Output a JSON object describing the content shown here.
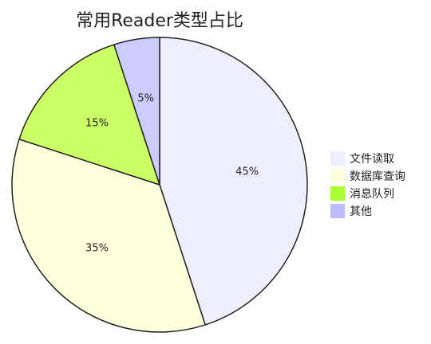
{
  "chart_data": {
    "type": "pie",
    "title": "常用Reader类型占比",
    "categories": [
      "文件读取",
      "数据库查询",
      "消息队列",
      "其他"
    ],
    "values": [
      45,
      35,
      15,
      5
    ],
    "labels": [
      "45%",
      "35%",
      "15%",
      "5%"
    ],
    "colors": [
      "#eeeeff",
      "#ffffdd",
      "#ccff66",
      "#ccccff"
    ],
    "legend_colors": [
      "#eeeeff",
      "#ffffdd",
      "#aaff33",
      "#bbbbff"
    ],
    "start_angle": "top (12 o'clock), clockwise",
    "legend_position": "right"
  }
}
